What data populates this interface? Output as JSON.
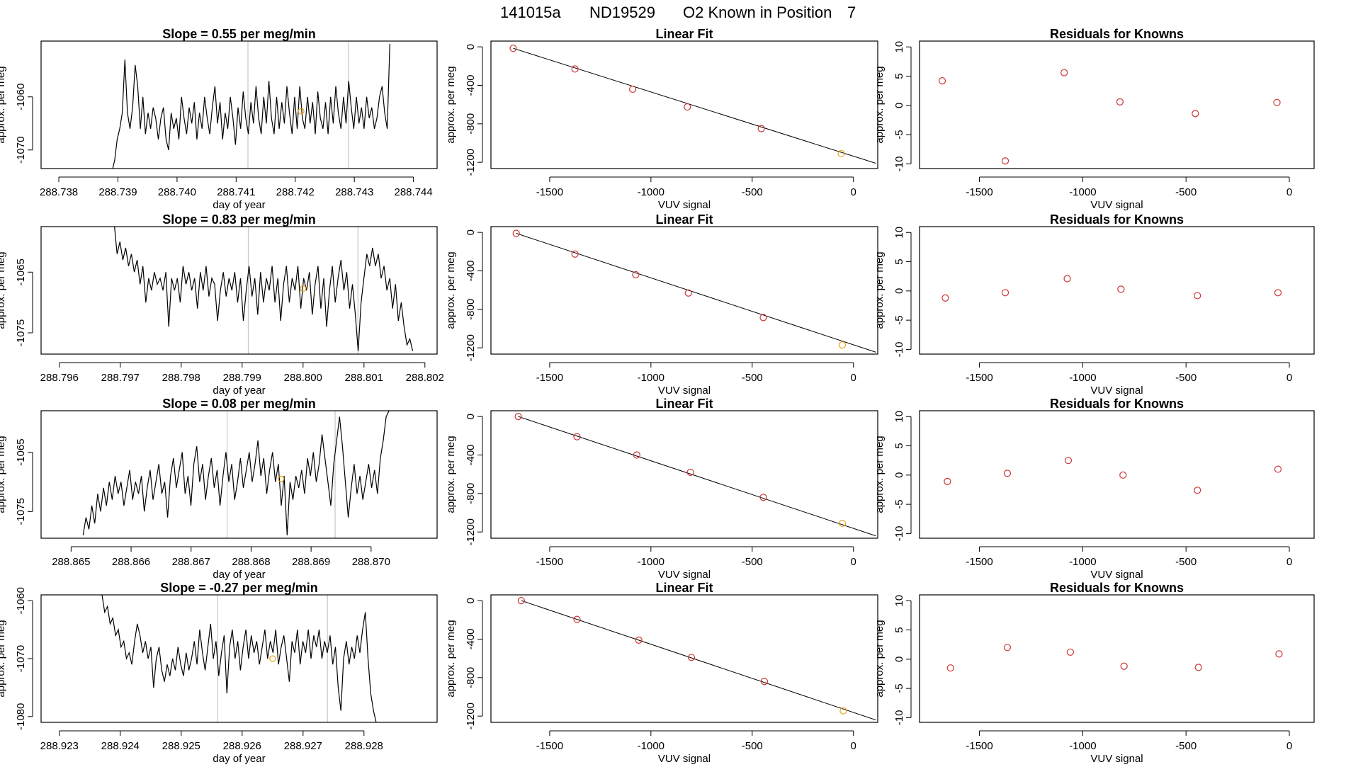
{
  "title": {
    "run": "141015a",
    "tank": "ND19529",
    "desc": "O2 Known in Position",
    "position": "7"
  },
  "colors": {
    "line": "#000000",
    "frame": "#000000",
    "marker_red": "#cd3333",
    "marker_orange": "#e8a317",
    "vline": "#bdbdbd"
  },
  "chart_data": [
    {
      "type": "line",
      "panel": "trace",
      "row": 0,
      "title": "Slope =  0.55  per meg/min",
      "xlabel": "day of year",
      "ylabel": "approx. per meg",
      "xlim": [
        288.7377,
        288.7444
      ],
      "ylim": [
        -1073.5,
        -1049.5
      ],
      "xticks": [
        "288.738",
        "288.739",
        "288.740",
        "288.741",
        "288.742",
        "288.743",
        "288.744"
      ],
      "xtickvals": [
        288.738,
        288.739,
        288.74,
        288.741,
        288.742,
        288.743,
        288.744
      ],
      "yticks": [
        "-1060",
        "-1070"
      ],
      "ytickvals": [
        -1060,
        -1070
      ],
      "vlines": [
        288.7412,
        288.7429
      ],
      "marker": {
        "x": 288.7421,
        "y": -1062.7
      },
      "start": 288.7389,
      "end": 288.7436,
      "values": [
        -1074,
        -1072,
        -1068,
        -1066,
        -1063,
        -1053,
        -1063,
        -1066,
        -1062,
        -1054,
        -1058,
        -1066,
        -1060,
        -1067,
        -1063,
        -1066,
        -1062,
        -1064,
        -1068,
        -1064,
        -1062,
        -1068,
        -1070,
        -1063,
        -1066,
        -1064,
        -1068,
        -1060,
        -1064,
        -1067,
        -1062,
        -1065,
        -1061,
        -1068,
        -1063,
        -1066,
        -1060,
        -1064,
        -1067,
        -1062,
        -1058,
        -1065,
        -1061,
        -1068,
        -1063,
        -1066,
        -1060,
        -1064,
        -1069,
        -1062,
        -1066,
        -1059,
        -1064,
        -1067,
        -1061,
        -1065,
        -1058,
        -1064,
        -1067,
        -1060,
        -1065,
        -1057,
        -1064,
        -1067,
        -1060,
        -1066,
        -1061,
        -1065,
        -1058,
        -1063,
        -1067,
        -1060,
        -1066,
        -1058,
        -1064,
        -1066,
        -1060,
        -1065,
        -1061,
        -1067,
        -1059,
        -1064,
        -1066,
        -1061,
        -1067,
        -1060,
        -1065,
        -1058,
        -1063,
        -1066,
        -1060,
        -1065,
        -1057,
        -1062,
        -1066,
        -1060,
        -1065,
        -1062,
        -1066,
        -1060,
        -1064,
        -1062,
        -1066,
        -1064,
        -1060,
        -1058,
        -1063,
        -1066,
        -1050
      ]
    },
    {
      "type": "line",
      "panel": "trace",
      "row": 1,
      "title": "Slope =  0.83  per meg/min",
      "xlabel": "day of year",
      "ylabel": "approx. per meg",
      "xlim": [
        288.7957,
        288.8022
      ],
      "ylim": [
        -1078.5,
        -1057.5
      ],
      "xticks": [
        "288.796",
        "288.797",
        "288.798",
        "288.799",
        "288.800",
        "288.801",
        "288.802"
      ],
      "xtickvals": [
        288.796,
        288.797,
        288.798,
        288.799,
        288.8,
        288.801,
        288.802
      ],
      "yticks": [
        "-1065",
        "-1075"
      ],
      "ytickvals": [
        -1065,
        -1075
      ],
      "vlines": [
        288.7991,
        288.8009
      ],
      "marker": {
        "x": 288.8,
        "y": -1067.7
      },
      "start": 288.7969,
      "end": 288.8018,
      "values": [
        -1057,
        -1062,
        -1060,
        -1063,
        -1061,
        -1064,
        -1062,
        -1065,
        -1063,
        -1067,
        -1064,
        -1070,
        -1066,
        -1068,
        -1065,
        -1067,
        -1066,
        -1068,
        -1065,
        -1074,
        -1066,
        -1068,
        -1066,
        -1070,
        -1064,
        -1067,
        -1065,
        -1068,
        -1066,
        -1071,
        -1065,
        -1068,
        -1064,
        -1069,
        -1066,
        -1067,
        -1073,
        -1068,
        -1065,
        -1069,
        -1066,
        -1068,
        -1065,
        -1070,
        -1066,
        -1073,
        -1068,
        -1064,
        -1069,
        -1066,
        -1072,
        -1065,
        -1070,
        -1066,
        -1068,
        -1064,
        -1070,
        -1066,
        -1073,
        -1067,
        -1064,
        -1070,
        -1066,
        -1068,
        -1064,
        -1071,
        -1066,
        -1068,
        -1065,
        -1072,
        -1067,
        -1064,
        -1071,
        -1066,
        -1074,
        -1068,
        -1064,
        -1070,
        -1066,
        -1063,
        -1068,
        -1065,
        -1071,
        -1067,
        -1072,
        -1078,
        -1070,
        -1066,
        -1062,
        -1064,
        -1061,
        -1064,
        -1062,
        -1066,
        -1064,
        -1068,
        -1066,
        -1071,
        -1067,
        -1073,
        -1070,
        -1074,
        -1077,
        -1076,
        -1078
      ]
    },
    {
      "type": "line",
      "panel": "trace",
      "row": 2,
      "title": "Slope =  0.08  per meg/min",
      "xlabel": "day of year",
      "ylabel": "approx. per meg",
      "xlim": [
        288.8645,
        288.8711
      ],
      "ylim": [
        -1079.5,
        -1058
      ],
      "xticks": [
        "288.865",
        "288.866",
        "288.867",
        "288.868",
        "288.869",
        "288.870"
      ],
      "xtickvals": [
        288.865,
        288.866,
        288.867,
        288.868,
        288.869,
        288.87
      ],
      "yticks": [
        "-1065",
        "-1075"
      ],
      "ytickvals": [
        -1065,
        -1075
      ],
      "vlines": [
        288.8676,
        288.8694
      ],
      "marker": {
        "x": 288.8685,
        "y": -1069.5
      },
      "start": 288.8652,
      "end": 288.8703,
      "values": [
        -1079,
        -1076,
        -1078,
        -1074,
        -1077,
        -1072,
        -1075,
        -1071,
        -1074,
        -1070,
        -1073,
        -1069,
        -1072,
        -1070,
        -1074,
        -1071,
        -1068,
        -1073,
        -1070,
        -1072,
        -1069,
        -1075,
        -1071,
        -1068,
        -1073,
        -1070,
        -1067,
        -1072,
        -1070,
        -1076,
        -1069,
        -1066,
        -1071,
        -1068,
        -1065,
        -1072,
        -1069,
        -1074,
        -1067,
        -1064,
        -1070,
        -1067,
        -1073,
        -1069,
        -1066,
        -1071,
        -1068,
        -1074,
        -1069,
        -1065,
        -1070,
        -1067,
        -1073,
        -1070,
        -1066,
        -1071,
        -1068,
        -1065,
        -1070,
        -1067,
        -1063,
        -1069,
        -1066,
        -1072,
        -1068,
        -1065,
        -1070,
        -1067,
        -1074,
        -1069,
        -1079,
        -1070,
        -1073,
        -1069,
        -1071,
        -1068,
        -1072,
        -1066,
        -1069,
        -1065,
        -1070,
        -1067,
        -1062,
        -1066,
        -1070,
        -1074,
        -1067,
        -1063,
        -1059,
        -1064,
        -1070,
        -1076,
        -1071,
        -1067,
        -1072,
        -1069,
        -1073,
        -1070,
        -1067,
        -1071,
        -1068,
        -1072,
        -1066,
        -1063,
        -1059,
        -1058
      ]
    },
    {
      "type": "line",
      "panel": "trace",
      "row": 3,
      "title": "Slope =  -0.27  per meg/min",
      "xlabel": "day of year",
      "ylabel": "approx. per meg",
      "xlim": [
        288.9227,
        288.9292
      ],
      "ylim": [
        -1081,
        -1059
      ],
      "xticks": [
        "288.923",
        "288.924",
        "288.925",
        "288.926",
        "288.927",
        "288.928"
      ],
      "xtickvals": [
        288.923,
        288.924,
        288.925,
        288.926,
        288.927,
        288.928
      ],
      "yticks": [
        "-1060",
        "-1070",
        "-1080"
      ],
      "ytickvals": [
        -1060,
        -1070,
        -1080
      ],
      "vlines": [
        288.9256,
        288.9274
      ],
      "marker": {
        "x": 288.9265,
        "y": -1070
      },
      "start": 288.9237,
      "end": 288.9282,
      "values": [
        -1059,
        -1062,
        -1061,
        -1064,
        -1063,
        -1066,
        -1065,
        -1068,
        -1067,
        -1070,
        -1069,
        -1071,
        -1067,
        -1064,
        -1066,
        -1069,
        -1067,
        -1070,
        -1068,
        -1075,
        -1070,
        -1068,
        -1072,
        -1074,
        -1071,
        -1073,
        -1070,
        -1072,
        -1068,
        -1071,
        -1073,
        -1069,
        -1072,
        -1070,
        -1067,
        -1071,
        -1065,
        -1069,
        -1072,
        -1068,
        -1064,
        -1070,
        -1067,
        -1073,
        -1069,
        -1066,
        -1076,
        -1068,
        -1065,
        -1070,
        -1067,
        -1072,
        -1068,
        -1065,
        -1070,
        -1066,
        -1069,
        -1067,
        -1071,
        -1068,
        -1065,
        -1070,
        -1067,
        -1069,
        -1065,
        -1071,
        -1068,
        -1066,
        -1070,
        -1074,
        -1067,
        -1069,
        -1065,
        -1071,
        -1067,
        -1069,
        -1065,
        -1070,
        -1066,
        -1068,
        -1065,
        -1070,
        -1067,
        -1069,
        -1066,
        -1071,
        -1068,
        -1075,
        -1079,
        -1070,
        -1067,
        -1071,
        -1068,
        -1070,
        -1066,
        -1069,
        -1065,
        -1062,
        -1070,
        -1076,
        -1079,
        -1081
      ]
    },
    {
      "type": "scatter",
      "panel": "fit",
      "row": 0,
      "title": "Linear Fit",
      "xlabel": "VUV signal",
      "ylabel": "approx. per meg",
      "xlim": [
        -1790,
        120
      ],
      "ylim": [
        -1265,
        60
      ],
      "xticks": [
        "-1500",
        "-1000",
        "-500",
        "0"
      ],
      "xtickvals": [
        -1500,
        -1000,
        -500,
        0
      ],
      "yticks": [
        "0",
        "-400",
        "-800",
        "-1200"
      ],
      "ytickvals": [
        0,
        -400,
        -800,
        -1200
      ],
      "x": [
        -1680,
        -1375,
        -1090,
        -820,
        -455,
        -60
      ],
      "y": [
        -15,
        -230,
        -440,
        -625,
        -850,
        -1110
      ],
      "highlight": 5,
      "fit_line": {
        "x": [
          -1680,
          110
        ],
        "y": [
          -15,
          -1210
        ]
      }
    },
    {
      "type": "scatter",
      "panel": "fit",
      "row": 1,
      "title": "Linear Fit",
      "xlabel": "VUV signal",
      "ylabel": "approx. per meg",
      "xlim": [
        -1790,
        120
      ],
      "ylim": [
        -1265,
        60
      ],
      "xticks": [
        "-1500",
        "-1000",
        "-500",
        "0"
      ],
      "xtickvals": [
        -1500,
        -1000,
        -500,
        0
      ],
      "yticks": [
        "0",
        "-400",
        "-800",
        "-1200"
      ],
      "ytickvals": [
        0,
        -400,
        -800,
        -1200
      ],
      "x": [
        -1665,
        -1375,
        -1075,
        -815,
        -445,
        -55
      ],
      "y": [
        -10,
        -225,
        -440,
        -630,
        -885,
        -1170
      ],
      "highlight": 5,
      "fit_line": {
        "x": [
          -1665,
          110
        ],
        "y": [
          -10,
          -1245
        ]
      }
    },
    {
      "type": "scatter",
      "panel": "fit",
      "row": 2,
      "title": "Linear Fit",
      "xlabel": "VUV signal",
      "ylabel": "approx. per meg",
      "xlim": [
        -1790,
        120
      ],
      "ylim": [
        -1265,
        60
      ],
      "xticks": [
        "-1500",
        "-1000",
        "-500",
        "0"
      ],
      "xtickvals": [
        -1500,
        -1000,
        -500,
        0
      ],
      "yticks": [
        "0",
        "-400",
        "-800",
        "-1200"
      ],
      "ytickvals": [
        0,
        -400,
        -800,
        -1200
      ],
      "x": [
        -1655,
        -1365,
        -1070,
        -805,
        -445,
        -55
      ],
      "y": [
        0,
        -210,
        -400,
        -580,
        -840,
        -1110
      ],
      "highlight": 5,
      "fit_line": {
        "x": [
          -1655,
          110
        ],
        "y": [
          0,
          -1240
        ]
      }
    },
    {
      "type": "scatter",
      "panel": "fit",
      "row": 3,
      "title": "Linear Fit",
      "xlabel": "VUV signal",
      "ylabel": "approx. per meg",
      "xlim": [
        -1790,
        120
      ],
      "ylim": [
        -1265,
        60
      ],
      "xticks": [
        "-1500",
        "-1000",
        "-500",
        "0"
      ],
      "xtickvals": [
        -1500,
        -1000,
        -500,
        0
      ],
      "yticks": [
        "0",
        "-400",
        "-800",
        "-1200"
      ],
      "ytickvals": [
        0,
        -400,
        -800,
        -1200
      ],
      "x": [
        -1640,
        -1365,
        -1060,
        -800,
        -440,
        -50
      ],
      "y": [
        0,
        -195,
        -410,
        -590,
        -840,
        -1145
      ],
      "highlight": 5,
      "fit_line": {
        "x": [
          -1640,
          110
        ],
        "y": [
          0,
          -1240
        ]
      }
    },
    {
      "type": "scatter",
      "panel": "residuals",
      "row": 0,
      "title": "Residuals for Knowns",
      "xlabel": "VUV signal",
      "ylabel": "approx. per meg",
      "xlim": [
        -1790,
        120
      ],
      "ylim": [
        -10.8,
        11
      ],
      "xticks": [
        "-1500",
        "-1000",
        "-500",
        "0"
      ],
      "xtickvals": [
        -1500,
        -1000,
        -500,
        0
      ],
      "yticks": [
        "10",
        "5",
        "0",
        "-5",
        "-10"
      ],
      "ytickvals": [
        10,
        5,
        0,
        -5,
        -10
      ],
      "x": [
        -1680,
        -1375,
        -1090,
        -820,
        -455,
        -60
      ],
      "y": [
        4.2,
        -9.5,
        5.6,
        0.6,
        -1.4,
        0.5
      ]
    },
    {
      "type": "scatter",
      "panel": "residuals",
      "row": 1,
      "title": "Residuals for Knowns",
      "xlabel": "VUV signal",
      "ylabel": "approx. per meg",
      "xlim": [
        -1790,
        120
      ],
      "ylim": [
        -10.8,
        11
      ],
      "xticks": [
        "-1500",
        "-1000",
        "-500",
        "0"
      ],
      "xtickvals": [
        -1500,
        -1000,
        -500,
        0
      ],
      "yticks": [
        "10",
        "5",
        "0",
        "-5",
        "-10"
      ],
      "ytickvals": [
        10,
        5,
        0,
        -5,
        -10
      ],
      "x": [
        -1665,
        -1375,
        -1075,
        -815,
        -445,
        -55
      ],
      "y": [
        -1.2,
        -0.3,
        2.1,
        0.3,
        -0.8,
        -0.3
      ]
    },
    {
      "type": "scatter",
      "panel": "residuals",
      "row": 2,
      "title": "Residuals for Knowns",
      "xlabel": "VUV signal",
      "ylabel": "approx. per meg",
      "xlim": [
        -1790,
        120
      ],
      "ylim": [
        -10.8,
        11
      ],
      "xticks": [
        "-1500",
        "-1000",
        "-500",
        "0"
      ],
      "xtickvals": [
        -1500,
        -1000,
        -500,
        0
      ],
      "yticks": [
        "10",
        "5",
        "0",
        "-5",
        "-10"
      ],
      "ytickvals": [
        10,
        5,
        0,
        -5,
        -10
      ],
      "x": [
        -1655,
        -1365,
        -1070,
        -805,
        -445,
        -55
      ],
      "y": [
        -1.1,
        0.3,
        2.5,
        0,
        -2.6,
        1.0
      ]
    },
    {
      "type": "scatter",
      "panel": "residuals",
      "row": 3,
      "title": "Residuals for Knowns",
      "xlabel": "VUV signal",
      "ylabel": "approx. per meg",
      "xlim": [
        -1790,
        120
      ],
      "ylim": [
        -10.8,
        11
      ],
      "xticks": [
        "-1500",
        "-1000",
        "-500",
        "0"
      ],
      "xtickvals": [
        -1500,
        -1000,
        -500,
        0
      ],
      "yticks": [
        "10",
        "5",
        "0",
        "-5",
        "-10"
      ],
      "ytickvals": [
        10,
        5,
        0,
        -5,
        -10
      ],
      "x": [
        -1640,
        -1365,
        -1060,
        -800,
        -440,
        -50
      ],
      "y": [
        -1.5,
        2.0,
        1.2,
        -1.2,
        -1.4,
        0.9
      ]
    }
  ]
}
